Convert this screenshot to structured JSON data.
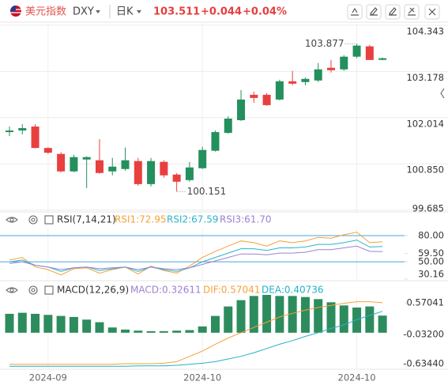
{
  "header": {
    "name": "美元指数",
    "code": "DXY",
    "period": "日K",
    "price": "103.511",
    "change": "+0.044",
    "change_pct": "+0.04%"
  },
  "chart_data": [
    {
      "type": "candlestick",
      "categories": [
        null,
        null,
        null,
        "2024-09",
        null,
        null,
        null,
        null,
        null,
        null,
        null,
        null,
        null,
        null,
        null,
        "2024-10",
        null,
        null,
        null,
        null,
        null,
        null,
        null,
        null,
        null,
        null,
        null,
        "2024-10",
        null,
        null
      ],
      "open": [
        101.65,
        101.69,
        101.79,
        101.25,
        101.1,
        100.66,
        100.96,
        100.94,
        100.66,
        100.72,
        100.92,
        100.34,
        100.9,
        100.58,
        100.44,
        100.74,
        101.18,
        101.63,
        101.95,
        102.59,
        102.59,
        102.47,
        102.93,
        102.91,
        102.95,
        103.27,
        103.23,
        103.55,
        103.81,
        103.47
      ],
      "high": [
        101.79,
        101.85,
        101.85,
        101.27,
        101.14,
        101.08,
        101.04,
        101.47,
        101.0,
        101.26,
        101.0,
        101.0,
        100.94,
        100.62,
        100.9,
        101.28,
        101.69,
        102.05,
        102.71,
        102.67,
        102.63,
        102.97,
        103.19,
        103.03,
        103.39,
        103.47,
        103.59,
        103.877,
        103.85,
        103.53
      ],
      "low": [
        101.55,
        101.59,
        101.24,
        101.1,
        100.64,
        100.64,
        100.24,
        100.6,
        100.56,
        100.68,
        100.3,
        100.28,
        100.5,
        100.151,
        100.4,
        100.72,
        101.16,
        101.61,
        101.93,
        102.39,
        102.31,
        102.45,
        102.83,
        102.83,
        102.91,
        103.15,
        103.19,
        103.51,
        103.47,
        103.46
      ],
      "close": [
        101.69,
        101.75,
        101.25,
        101.13,
        100.66,
        101.02,
        101.02,
        100.62,
        100.78,
        100.94,
        100.34,
        100.92,
        100.56,
        100.4,
        100.76,
        101.2,
        101.65,
        101.99,
        102.47,
        102.51,
        102.33,
        102.93,
        102.87,
        102.99,
        103.23,
        103.21,
        103.55,
        103.83,
        103.467,
        103.511
      ],
      "up_color": "#23905e",
      "down_color": "#e8403f",
      "annotations": [
        {
          "label": "103.877",
          "value": 103.877
        },
        {
          "label": "100.151",
          "value": 100.151
        }
      ],
      "ylim": [
        99.6,
        104.42
      ],
      "yticks": [
        104.343,
        103.178,
        102.014,
        {
          "value": 100.85,
          "label": "100.850"
        },
        99.685
      ],
      "grid": true
    },
    {
      "type": "line",
      "title": "RSI(7,14,21)",
      "series": [
        {
          "name": "RSI1:72.95",
          "color": "#f4a23a",
          "values": [
            52,
            55,
            44,
            41,
            35,
            42,
            43,
            37,
            41,
            44,
            36,
            45,
            40,
            37,
            45,
            55,
            62,
            68,
            74,
            72,
            68,
            74,
            72,
            74,
            78,
            77,
            81,
            84,
            72,
            72.95
          ]
        },
        {
          "name": "RSI2:67.59",
          "color": "#2bb4c8",
          "values": [
            50,
            52,
            46,
            44,
            39,
            43,
            44,
            40,
            42,
            44,
            39,
            44,
            41,
            39,
            43,
            50,
            55,
            60,
            65,
            65,
            63,
            66,
            66,
            67,
            70,
            70,
            72,
            75,
            67,
            67.59
          ]
        },
        {
          "name": "RSI3:61.70",
          "color": "#9b82d3",
          "values": [
            48,
            50,
            46,
            44,
            41,
            43,
            44,
            42,
            43,
            44,
            41,
            44,
            42,
            41,
            43,
            47,
            51,
            55,
            59,
            59,
            58,
            60,
            60,
            61,
            64,
            64,
            66,
            68,
            62,
            61.7
          ]
        }
      ],
      "ylim": [
        30.16,
        88.2
      ],
      "yticks": [
        {
          "value": 80,
          "label": "80.00"
        },
        {
          "value": 59.5,
          "label": "59.50"
        },
        {
          "value": 50,
          "label": "50.00"
        },
        30.16
      ],
      "reference_lines": [
        80,
        50
      ],
      "reference_color": "#4aa3df"
    },
    {
      "type": "macd",
      "title": "MACD(12,26,9)",
      "histogram": {
        "name": "MACD:0.32611",
        "name_color": "#9b82d3",
        "color": "#2d8c5e",
        "values": [
          0.36,
          0.38,
          0.36,
          0.34,
          0.32,
          0.3,
          0.25,
          0.2,
          0.1,
          0.06,
          0.04,
          0.03,
          0.03,
          0.04,
          0.05,
          0.12,
          0.32,
          0.5,
          0.62,
          0.7,
          0.72,
          0.7,
          0.7,
          0.68,
          0.64,
          0.58,
          0.52,
          0.48,
          0.5,
          0.32611
        ]
      },
      "series": [
        {
          "name": "DIF:0.57041",
          "color": "#f4a23a",
          "values": [
            -0.6,
            -0.6,
            -0.6,
            -0.6,
            -0.6,
            -0.6,
            -0.6,
            -0.6,
            -0.6,
            -0.59,
            -0.59,
            -0.59,
            -0.58,
            -0.55,
            -0.45,
            -0.35,
            -0.22,
            -0.1,
            0.0,
            0.1,
            0.2,
            0.3,
            0.37,
            0.43,
            0.48,
            0.52,
            0.56,
            0.59,
            0.59,
            0.57041
          ]
        },
        {
          "name": "DEA:0.40736",
          "color": "#23b1c9",
          "values": [
            -0.64,
            -0.64,
            -0.64,
            -0.64,
            -0.64,
            -0.64,
            -0.64,
            -0.64,
            -0.64,
            -0.64,
            -0.63,
            -0.63,
            -0.63,
            -0.62,
            -0.6,
            -0.58,
            -0.55,
            -0.5,
            -0.45,
            -0.38,
            -0.3,
            -0.22,
            -0.15,
            -0.07,
            0.0,
            0.08,
            0.15,
            0.25,
            0.33,
            0.40736
          ]
        }
      ],
      "ylim": [
        -0.68,
        0.69
      ],
      "yticks": [
        0.57041,
        {
          "value": -0.032,
          "label": "-0.03200"
        },
        {
          "value": -0.6344,
          "label": "-0.63440"
        }
      ]
    }
  ]
}
